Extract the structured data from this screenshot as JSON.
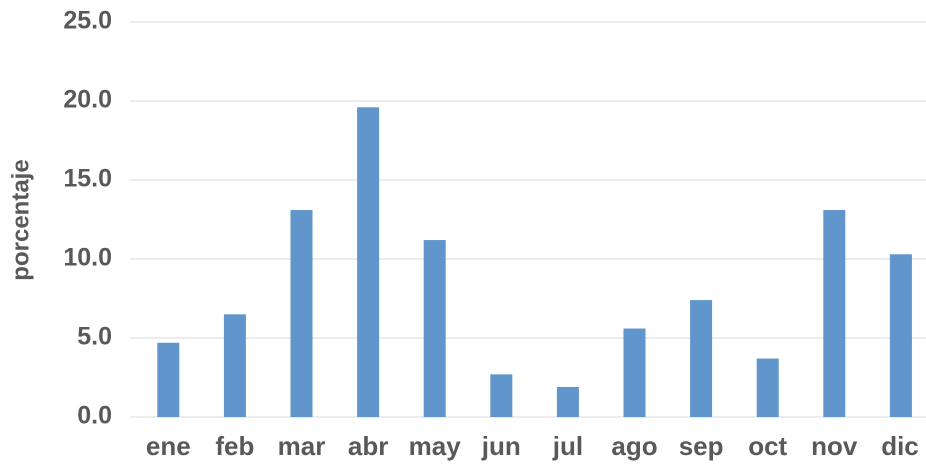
{
  "chart_data": {
    "type": "bar",
    "y_label": "porcentaje",
    "categories": [
      "ene",
      "feb",
      "mar",
      "abr",
      "may",
      "jun",
      "jul",
      "ago",
      "sep",
      "oct",
      "nov",
      "dic"
    ],
    "values": [
      4.7,
      6.5,
      13.1,
      19.6,
      11.2,
      2.7,
      1.9,
      5.6,
      7.4,
      3.7,
      13.1,
      10.3
    ],
    "color": "#6096cb",
    "ylim": [
      0,
      25
    ],
    "yticks": [
      {
        "value": 0,
        "label": "0.0"
      },
      {
        "value": 5,
        "label": "5.0"
      },
      {
        "value": 10,
        "label": "10.0"
      },
      {
        "value": 15,
        "label": "15.0"
      },
      {
        "value": 20,
        "label": "20.0"
      },
      {
        "value": 25,
        "label": "25.0"
      }
    ],
    "grid": true
  }
}
